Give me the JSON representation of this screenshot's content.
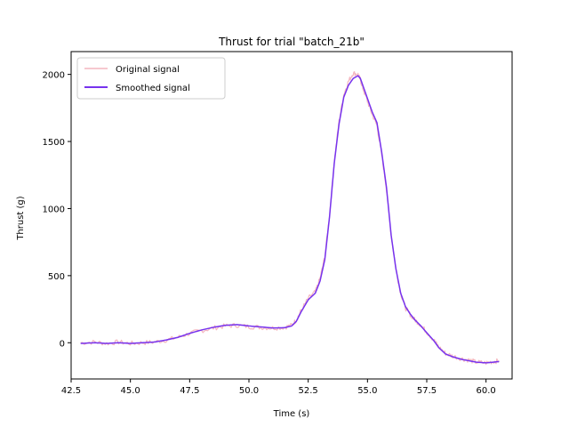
{
  "chart_data": {
    "type": "line",
    "title": "Thrust for trial \"batch_21b\"",
    "xlabel": "Time (s)",
    "ylabel": "Thrust (g)",
    "xlim": [
      42.5,
      61.1
    ],
    "ylim": [
      -270,
      2170
    ],
    "xticks": [
      42.5,
      45.0,
      47.5,
      50.0,
      52.5,
      55.0,
      57.5,
      60.0
    ],
    "xtick_labels": [
      "42.5",
      "45.0",
      "47.5",
      "50.0",
      "52.5",
      "55.0",
      "57.5",
      "60.0"
    ],
    "yticks": [
      0,
      500,
      1000,
      1500,
      2000
    ],
    "ytick_labels": [
      "0",
      "500",
      "1000",
      "1500",
      "2000"
    ],
    "grid": false,
    "legend_position": "top-left",
    "series": [
      {
        "name": "Original signal",
        "color": "#f4b6bf",
        "noisy": true,
        "x": [
          42.9,
          43.5,
          44.0,
          44.5,
          45.0,
          45.5,
          46.0,
          46.5,
          47.0,
          47.5,
          48.0,
          48.5,
          49.0,
          49.5,
          50.0,
          50.5,
          51.0,
          51.5,
          51.8,
          52.0,
          52.2,
          52.5,
          52.8,
          53.0,
          53.2,
          53.4,
          53.6,
          53.8,
          54.0,
          54.2,
          54.4,
          54.6,
          54.7,
          54.8,
          55.0,
          55.2,
          55.4,
          55.6,
          55.8,
          56.0,
          56.2,
          56.4,
          56.6,
          56.8,
          57.0,
          57.2,
          57.5,
          57.8,
          58.0,
          58.3,
          58.6,
          59.0,
          59.3,
          59.6,
          60.0,
          60.3,
          60.55
        ],
        "y": [
          0,
          5,
          -5,
          5,
          -5,
          0,
          5,
          20,
          40,
          70,
          90,
          110,
          125,
          130,
          120,
          115,
          110,
          115,
          130,
          170,
          240,
          330,
          380,
          480,
          640,
          950,
          1350,
          1650,
          1850,
          1950,
          2010,
          2000,
          1960,
          1900,
          1800,
          1700,
          1620,
          1400,
          1150,
          800,
          550,
          370,
          260,
          210,
          170,
          140,
          80,
          20,
          -30,
          -80,
          -100,
          -120,
          -130,
          -145,
          -150,
          -140,
          -135
        ]
      },
      {
        "name": "Smoothed signal",
        "color": "#7733ee",
        "noisy": false,
        "x": [
          42.9,
          43.5,
          44.0,
          44.5,
          45.0,
          45.5,
          46.0,
          46.5,
          47.0,
          47.5,
          48.0,
          48.5,
          49.0,
          49.5,
          50.0,
          50.5,
          51.0,
          51.5,
          51.8,
          52.0,
          52.2,
          52.5,
          52.8,
          53.0,
          53.2,
          53.4,
          53.6,
          53.8,
          54.0,
          54.2,
          54.4,
          54.6,
          54.7,
          54.8,
          55.0,
          55.2,
          55.4,
          55.6,
          55.8,
          56.0,
          56.2,
          56.4,
          56.6,
          56.8,
          57.0,
          57.2,
          57.5,
          57.8,
          58.0,
          58.3,
          58.6,
          59.0,
          59.3,
          59.6,
          60.0,
          60.3,
          60.55
        ],
        "y": [
          -5,
          0,
          -5,
          0,
          -5,
          0,
          5,
          20,
          40,
          70,
          95,
          115,
          130,
          135,
          125,
          118,
          110,
          112,
          125,
          160,
          230,
          320,
          370,
          460,
          620,
          940,
          1340,
          1630,
          1830,
          1920,
          1970,
          1990,
          1970,
          1920,
          1820,
          1720,
          1640,
          1420,
          1160,
          800,
          550,
          370,
          270,
          215,
          170,
          135,
          75,
          15,
          -35,
          -85,
          -105,
          -125,
          -135,
          -145,
          -150,
          -145,
          -140
        ]
      }
    ]
  }
}
